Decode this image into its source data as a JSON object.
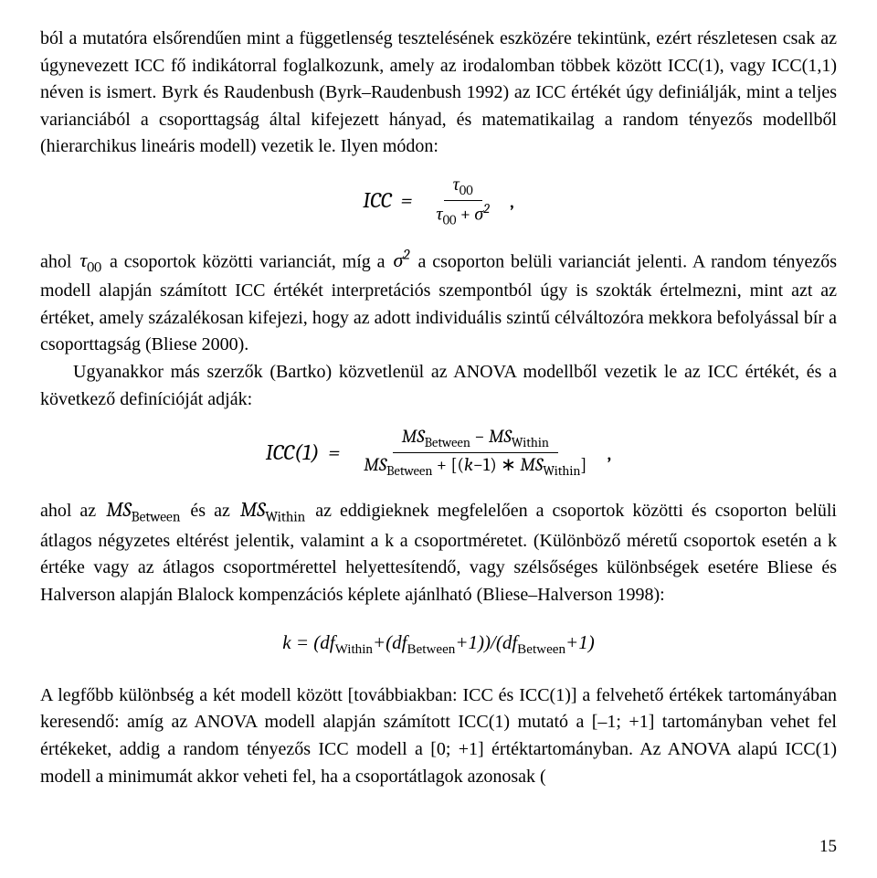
{
  "para1": "ból a mutatóra elsőrendűen mint a függetlenség tesztelésének eszközére tekintünk, ezért részletesen csak az úgynevezett ICC fő indikátorral foglalkozunk, amely az irodalomban többek között ICC(1), vagy ICC(1,1) néven is ismert. Byrk és Raudenbush (Byrk–Raudenbush 1992) az ICC értékét úgy definiálják, mint a teljes varianciából a csoporttagság által kifejezett hányad, és matematikailag a random tényezős modellből (hierarchikus lineáris modell) vezetik le. Ilyen módon:",
  "formula1": {
    "lhs": "ICC",
    "num": "τ",
    "num_sub": "00",
    "den_left": "τ",
    "den_left_sub": "00",
    "den_plus": "+",
    "den_right": "σ",
    "den_right_sup": "2",
    "trail": ","
  },
  "para2_a": "ahol ",
  "para2_tau": "τ",
  "para2_tau_sub": "00",
  "para2_b": " a csoportok közötti varianciát, míg a ",
  "para2_sigma": "σ",
  "para2_sigma_sup": "2",
  "para2_c": " a csoporton belüli varianciát jelenti. A random tényezős modell alapján számított ICC értékét interpretációs szempontból úgy is szokták értelmezni, mint azt az értéket, amely százalékosan kifejezi, hogy az adott individuális szintű célváltozóra mekkora befolyással bír a csoporttagság (Bliese 2000).",
  "para3": "Ugyanakkor más szerzők (Bartko) közvetlenül az ANOVA modellből vezetik le az ICC értékét, és a következő definícióját adják:",
  "formula2": {
    "lhs": "ICC(1)",
    "num_a": "MS",
    "num_a_sub": "Between",
    "num_minus": "−",
    "num_b": "MS",
    "num_b_sub": "Within",
    "den_a": "MS",
    "den_a_sub": "Between",
    "den_plus": "+",
    "den_br_open": "[(",
    "den_k": "k",
    "den_minus": "−1)",
    "den_star": "∗",
    "den_b": "MS",
    "den_b_sub": "Within",
    "den_br_close": "]",
    "trail": ","
  },
  "para4_a": "ahol az ",
  "para4_msb": "MS",
  "para4_msb_sub": "Between",
  "para4_b": " és az ",
  "para4_msw": "MS",
  "para4_msw_sub": "Within",
  "para4_c": " az eddigieknek megfelelően a csoportok közötti és csoporton belüli átlagos négyzetes eltérést jelentik, valamint a k a csoportméretet. (Különböző méretű csoportok esetén a k értéke vagy az átlagos csoportmérettel helyettesítendő, vagy szélsőséges különbségek esetére Bliese és Halverson alapján Blalock kompenzációs képlete ajánlható (Bliese–Halverson 1998):",
  "formula3": "k = (df",
  "formula3_sub1": "Within",
  "formula3_mid": "+(df",
  "formula3_sub2": "Between",
  "formula3_mid2": "+1))/(df",
  "formula3_sub3": "Between",
  "formula3_end": "+1)",
  "para5": "A legfőbb különbség a két modell között [továbbiakban: ICC és ICC(1)] a felvehető értékek tartományában keresendő: amíg az ANOVA modell alapján számított ICC(1) mutató a [–1; +1] tartományban vehet fel értékeket, addig a random tényezős ICC modell a [0; +1] értéktartományban. Az ANOVA alapú ICC(1) modell a minimumát akkor veheti fel, ha a csoportátlagok azonosak (",
  "pageNumber": "15",
  "colors": {
    "text": "#000000",
    "bg": "#ffffff"
  }
}
